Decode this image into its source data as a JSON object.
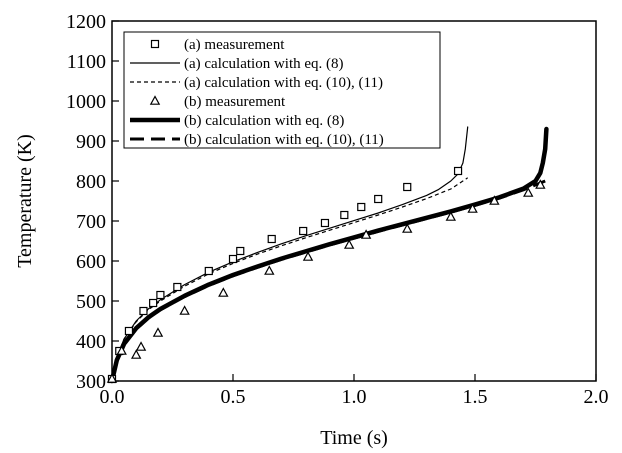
{
  "chart_data": {
    "type": "line",
    "xlabel": "Time (s)",
    "ylabel": "Temperature (K)",
    "xlim": [
      0.0,
      2.0
    ],
    "ylim": [
      300,
      1200
    ],
    "x_ticks": [
      0.0,
      0.5,
      1.0,
      1.5,
      2.0
    ],
    "x_tick_labels": [
      "0.0",
      "0.5",
      "1.0",
      "1.5",
      "2.0"
    ],
    "y_ticks": [
      300,
      400,
      500,
      600,
      700,
      800,
      900,
      1000,
      1100,
      1200
    ],
    "y_tick_labels": [
      "300",
      "400",
      "500",
      "600",
      "700",
      "800",
      "900",
      "1000",
      "1100",
      "1200"
    ],
    "grid": false,
    "legend_position": "top-left",
    "series": [
      {
        "name": "(a) measurement",
        "kind": "marker-square",
        "x": [
          0.0,
          0.03,
          0.07,
          0.13,
          0.17,
          0.2,
          0.27,
          0.4,
          0.5,
          0.53,
          0.66,
          0.79,
          0.88,
          0.96,
          1.03,
          1.1,
          1.22,
          1.43
        ],
        "y": [
          305,
          375,
          425,
          475,
          495,
          515,
          535,
          575,
          605,
          625,
          655,
          675,
          695,
          715,
          735,
          755,
          785,
          825
        ]
      },
      {
        "name": "(a) calculation with eq. (8)",
        "kind": "line-thin-solid",
        "x": [
          0.0,
          0.02,
          0.05,
          0.1,
          0.15,
          0.2,
          0.3,
          0.4,
          0.5,
          0.6,
          0.7,
          0.8,
          0.9,
          1.0,
          1.1,
          1.2,
          1.3,
          1.35,
          1.4,
          1.43,
          1.45,
          1.46,
          1.47
        ],
        "y": [
          300,
          360,
          405,
          450,
          480,
          503,
          541,
          572,
          598,
          621,
          643,
          663,
          682,
          701,
          720,
          741,
          764,
          779,
          800,
          818,
          845,
          880,
          935
        ]
      },
      {
        "name": "(a) calculation with eq. (10), (11)",
        "kind": "line-thin-dashed",
        "x": [
          0.0,
          0.02,
          0.05,
          0.1,
          0.15,
          0.2,
          0.3,
          0.4,
          0.5,
          0.6,
          0.7,
          0.8,
          0.9,
          1.0,
          1.1,
          1.2,
          1.3,
          1.4,
          1.47
        ],
        "y": [
          300,
          360,
          405,
          448,
          478,
          500,
          537,
          568,
          594,
          617,
          638,
          658,
          677,
          696,
          715,
          735,
          756,
          780,
          808
        ]
      },
      {
        "name": "(b) measurement",
        "kind": "marker-triangle",
        "x": [
          0.0,
          0.04,
          0.1,
          0.12,
          0.19,
          0.3,
          0.46,
          0.65,
          0.81,
          0.98,
          1.05,
          1.22,
          1.4,
          1.49,
          1.58,
          1.72,
          1.77
        ],
        "y": [
          305,
          375,
          365,
          385,
          420,
          475,
          520,
          575,
          610,
          640,
          665,
          680,
          710,
          730,
          750,
          770,
          790
        ]
      },
      {
        "name": "(b) calculation with eq. (8)",
        "kind": "line-thick-solid",
        "x": [
          0.0,
          0.02,
          0.05,
          0.1,
          0.15,
          0.2,
          0.3,
          0.4,
          0.5,
          0.6,
          0.7,
          0.8,
          0.9,
          1.0,
          1.1,
          1.2,
          1.3,
          1.4,
          1.5,
          1.6,
          1.7,
          1.75,
          1.77,
          1.78,
          1.79,
          1.795
        ],
        "y": [
          300,
          352,
          393,
          432,
          459,
          480,
          513,
          541,
          565,
          586,
          606,
          624,
          642,
          659,
          676,
          692,
          708,
          724,
          741,
          759,
          781,
          800,
          820,
          845,
          880,
          930
        ]
      },
      {
        "name": "(b) calculation with eq. (10), (11)",
        "kind": "line-thick-dashed",
        "x": [
          0.0,
          0.02,
          0.05,
          0.1,
          0.15,
          0.2,
          0.3,
          0.4,
          0.5,
          0.6,
          0.7,
          0.8,
          0.9,
          1.0,
          1.1,
          1.2,
          1.3,
          1.4,
          1.5,
          1.6,
          1.7,
          1.79
        ],
        "y": [
          300,
          350,
          391,
          430,
          457,
          478,
          511,
          539,
          563,
          584,
          604,
          622,
          640,
          657,
          674,
          690,
          706,
          722,
          739,
          757,
          778,
          800
        ]
      }
    ]
  }
}
